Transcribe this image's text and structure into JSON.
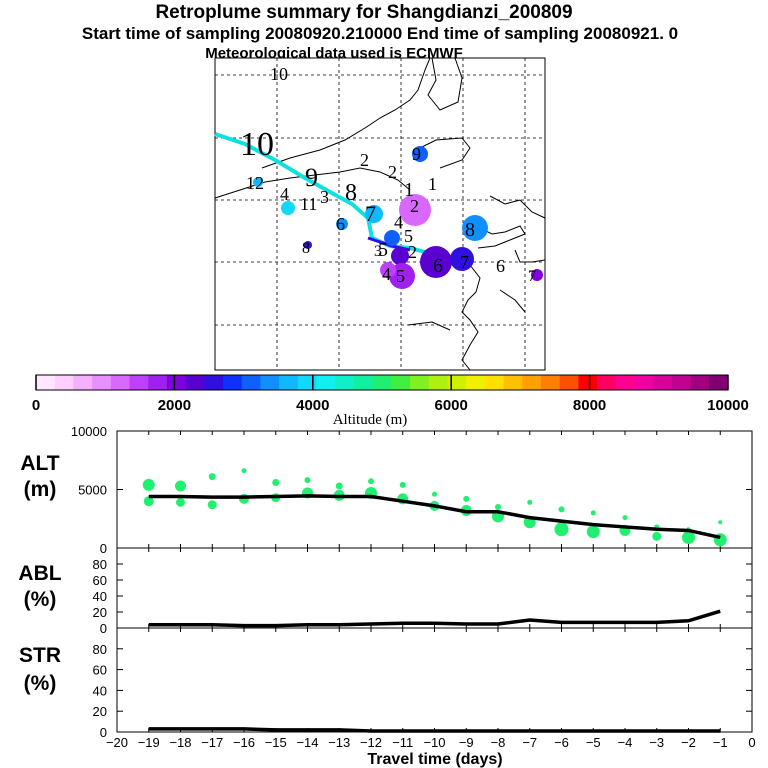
{
  "header": {
    "title": "Retroplume summary for Shangdianzi_200809",
    "sampling_line": "Start time of sampling 20080920.210000     End time of sampling 20080921.     0",
    "met_line": "Meteorological data used is ECMWF"
  },
  "map": {
    "labels": [
      "10",
      "10",
      "9",
      "8",
      "12",
      "4",
      "11",
      "3",
      "2",
      "2",
      "1",
      "9",
      "7",
      "6",
      "5",
      "4",
      "5",
      "2",
      "8",
      "6",
      "7",
      "6",
      "7",
      "8",
      "4",
      "5",
      "3",
      "2",
      "1"
    ]
  },
  "colorbar": {
    "tick_labels": [
      "0",
      "2000",
      "4000",
      "6000",
      "8000",
      "10000"
    ],
    "label": "Altitude (m)",
    "colors": [
      "#ffe8ff",
      "#ffd0ff",
      "#f5b0ff",
      "#e890ff",
      "#d868ff",
      "#c040ff",
      "#a020f0",
      "#8000e0",
      "#5a00d0",
      "#3010e0",
      "#1030ff",
      "#1060ff",
      "#1090ff",
      "#10b8ff",
      "#10d8ff",
      "#10f0f0",
      "#10f0c8",
      "#10f0a0",
      "#20f070",
      "#40f040",
      "#80f020",
      "#b0f010",
      "#d0f000",
      "#f0f000",
      "#ffe000",
      "#ffc000",
      "#ffa000",
      "#ff8000",
      "#ff5000",
      "#ff0000",
      "#ff0060",
      "#ff0090",
      "#f000a0",
      "#d80098",
      "#c00090",
      "#a00080",
      "#800070"
    ]
  },
  "chart_data": [
    {
      "type": "scatter",
      "title": "ALT (m)",
      "panel_label_1": "ALT",
      "panel_label_2": "(m)",
      "ylim": [
        0,
        10000
      ],
      "y_tick_labels": [
        "0",
        "5000",
        "10000"
      ],
      "xlim": [
        -20,
        0
      ],
      "series": [
        {
          "name": "median altitude",
          "x": [
            -19,
            -18,
            -17,
            -16,
            -15,
            -14,
            -13,
            -12,
            -11,
            -10,
            -9,
            -8,
            -7,
            -6,
            -5,
            -4,
            -3,
            -2,
            -1
          ],
          "values": [
            4400,
            4400,
            4350,
            4350,
            4400,
            4450,
            4400,
            4400,
            4000,
            3600,
            3100,
            3100,
            2600,
            2300,
            2000,
            1800,
            1600,
            1500,
            900
          ]
        },
        {
          "name": "particle clusters",
          "x": [
            -19,
            -19,
            -18,
            -18,
            -17,
            -17,
            -16,
            -16,
            -15,
            -15,
            -14,
            -14,
            -13,
            -13,
            -12,
            -12,
            -11,
            -11,
            -10,
            -10,
            -9,
            -9,
            -8,
            -8,
            -7,
            -7,
            -6,
            -6,
            -5,
            -5,
            -4,
            -4,
            -3,
            -3,
            -2,
            -2,
            -1,
            -1
          ],
          "values": [
            5400,
            4000,
            5300,
            3900,
            6100,
            3700,
            6600,
            4200,
            5600,
            4300,
            5800,
            4700,
            5300,
            4500,
            5700,
            4700,
            5400,
            4200,
            4600,
            3600,
            4200,
            3200,
            3500,
            2700,
            3900,
            2200,
            3300,
            1600,
            3000,
            1400,
            2600,
            1500,
            1800,
            1000,
            1600,
            900,
            2200,
            700
          ],
          "sizes": [
            10,
            8,
            9,
            7,
            5,
            7,
            3,
            8,
            5,
            7,
            4,
            9,
            5,
            9,
            4,
            10,
            4,
            9,
            3,
            8,
            4,
            9,
            4,
            10,
            3,
            10,
            4,
            12,
            3,
            11,
            3,
            9,
            3,
            7,
            2,
            11,
            2,
            11
          ]
        }
      ]
    },
    {
      "type": "line",
      "title": "ABL (%)",
      "panel_label_1": "ABL",
      "panel_label_2": "(%)",
      "ylim": [
        0,
        100
      ],
      "y_tick_labels": [
        "0",
        "20",
        "40",
        "60",
        "80"
      ],
      "x": [
        -19,
        -18,
        -17,
        -16,
        -15,
        -14,
        -13,
        -12,
        -11,
        -10,
        -9,
        -8,
        -7,
        -6,
        -5,
        -4,
        -3,
        -2,
        -1
      ],
      "values": [
        4,
        4,
        4,
        3,
        3,
        4,
        4,
        5,
        6,
        6,
        5,
        5,
        10,
        7,
        7,
        7,
        7,
        9,
        21
      ]
    },
    {
      "type": "line",
      "title": "STR (%)",
      "panel_label_1": "STR",
      "panel_label_2": "(%)",
      "ylim": [
        0,
        100
      ],
      "y_tick_labels": [
        "0",
        "20",
        "40",
        "60",
        "80"
      ],
      "x": [
        -19,
        -18,
        -17,
        -16,
        -15,
        -14,
        -13,
        -12,
        -11,
        -10,
        -9,
        -8,
        -7,
        -6,
        -5,
        -4,
        -3,
        -2,
        -1
      ],
      "values": [
        3,
        3,
        3,
        3,
        2,
        2,
        2,
        1,
        1,
        1,
        1,
        1,
        1,
        1,
        1,
        1,
        1,
        1,
        1
      ]
    }
  ],
  "x_axis": {
    "tick_labels": [
      "−20",
      "−19",
      "−18",
      "−17",
      "−16",
      "−15",
      "−14",
      "−13",
      "−12",
      "−11",
      "−10",
      "−9",
      "−8",
      "−7",
      "−6",
      "−5",
      "−4",
      "−3",
      "−2",
      "−1",
      "0"
    ],
    "label": "Travel time (days)"
  }
}
